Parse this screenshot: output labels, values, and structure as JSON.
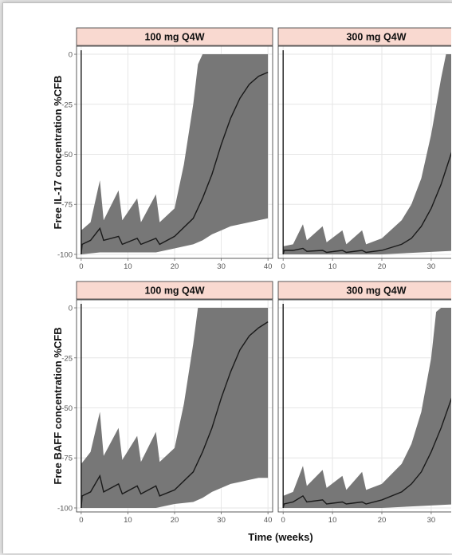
{
  "chart_data": {
    "type": "area",
    "xlabel": "Time (weeks)",
    "x_ticks": [
      0,
      10,
      20,
      30,
      40
    ],
    "y_ticks": [
      0,
      -25,
      -50,
      -75,
      -100
    ],
    "xlim": [
      -1,
      41
    ],
    "ylim": [
      -102,
      4
    ],
    "grid": true,
    "colors": {
      "band": "#777777",
      "line": "#1a1a1a",
      "strip": "#f9d9d0",
      "grid": "#e6e6e6"
    },
    "rows": [
      {
        "ylabel": "Free IL-17 concentration %CFB"
      },
      {
        "ylabel": "Free BAFF concentration %CFB"
      }
    ],
    "panels": [
      {
        "title": "100 mg Q4W",
        "row": 0,
        "col": 0,
        "median": [
          [
            0,
            -100
          ],
          [
            0.2,
            -95
          ],
          [
            2,
            -93
          ],
          [
            4,
            -87
          ],
          [
            4.8,
            -93
          ],
          [
            8,
            -91
          ],
          [
            8.8,
            -95
          ],
          [
            12,
            -92
          ],
          [
            12.8,
            -95
          ],
          [
            16,
            -92
          ],
          [
            16.8,
            -95
          ],
          [
            20,
            -91
          ],
          [
            24,
            -82
          ],
          [
            26,
            -72
          ],
          [
            28,
            -60
          ],
          [
            30,
            -45
          ],
          [
            32,
            -32
          ],
          [
            34,
            -22
          ],
          [
            36,
            -15
          ],
          [
            38,
            -11
          ],
          [
            40,
            -9
          ]
        ],
        "upper": [
          [
            0,
            -88
          ],
          [
            2,
            -84
          ],
          [
            4,
            -63
          ],
          [
            4.8,
            -83
          ],
          [
            8,
            -68
          ],
          [
            8.8,
            -83
          ],
          [
            12,
            -72
          ],
          [
            12.8,
            -84
          ],
          [
            16,
            -70
          ],
          [
            16.8,
            -84
          ],
          [
            20,
            -77
          ],
          [
            22,
            -55
          ],
          [
            24,
            -25
          ],
          [
            25,
            -5
          ],
          [
            26,
            0
          ],
          [
            28,
            0
          ],
          [
            40,
            0
          ]
        ],
        "lower": [
          [
            0,
            -100
          ],
          [
            4,
            -99
          ],
          [
            8,
            -99
          ],
          [
            12,
            -99
          ],
          [
            16,
            -99
          ],
          [
            18,
            -98
          ],
          [
            20,
            -97
          ],
          [
            24,
            -95
          ],
          [
            26,
            -93
          ],
          [
            28,
            -90
          ],
          [
            30,
            -88
          ],
          [
            32,
            -86
          ],
          [
            34,
            -85
          ],
          [
            36,
            -84
          ],
          [
            38,
            -83
          ],
          [
            40,
            -82
          ]
        ]
      },
      {
        "title": "300 mg Q4W",
        "row": 0,
        "col": 1,
        "median": [
          [
            0,
            -100
          ],
          [
            0.2,
            -98
          ],
          [
            2,
            -98
          ],
          [
            4,
            -97
          ],
          [
            4.8,
            -98.5
          ],
          [
            8,
            -98
          ],
          [
            8.8,
            -99
          ],
          [
            12,
            -98
          ],
          [
            12.8,
            -99
          ],
          [
            16,
            -98
          ],
          [
            16.8,
            -99
          ],
          [
            20,
            -98
          ],
          [
            24,
            -95
          ],
          [
            26,
            -92
          ],
          [
            28,
            -86
          ],
          [
            30,
            -77
          ],
          [
            32,
            -65
          ],
          [
            34,
            -50
          ],
          [
            36,
            -35
          ],
          [
            38,
            -22
          ],
          [
            40,
            -12
          ]
        ],
        "upper": [
          [
            0,
            -96
          ],
          [
            2,
            -95
          ],
          [
            4,
            -85
          ],
          [
            4.8,
            -93
          ],
          [
            8,
            -86
          ],
          [
            8.8,
            -94
          ],
          [
            12,
            -88
          ],
          [
            12.8,
            -95
          ],
          [
            16,
            -88
          ],
          [
            16.8,
            -95
          ],
          [
            20,
            -92
          ],
          [
            24,
            -83
          ],
          [
            26,
            -75
          ],
          [
            28,
            -62
          ],
          [
            30,
            -40
          ],
          [
            32,
            -12
          ],
          [
            33,
            0
          ],
          [
            40,
            0
          ]
        ],
        "lower": [
          [
            0,
            -100
          ],
          [
            10,
            -100
          ],
          [
            16,
            -100
          ],
          [
            20,
            -100
          ],
          [
            24,
            -99.5
          ],
          [
            28,
            -99
          ],
          [
            32,
            -98.5
          ],
          [
            36,
            -98
          ],
          [
            40,
            -97
          ]
        ]
      },
      {
        "title": "100 mg Q4W",
        "row": 1,
        "col": 0,
        "median": [
          [
            0,
            -100
          ],
          [
            0.2,
            -94
          ],
          [
            2,
            -92
          ],
          [
            4,
            -84
          ],
          [
            4.8,
            -92
          ],
          [
            8,
            -88
          ],
          [
            8.8,
            -93
          ],
          [
            12,
            -89
          ],
          [
            12.8,
            -93
          ],
          [
            16,
            -89
          ],
          [
            16.8,
            -94
          ],
          [
            20,
            -91
          ],
          [
            24,
            -82
          ],
          [
            26,
            -72
          ],
          [
            28,
            -60
          ],
          [
            30,
            -45
          ],
          [
            32,
            -32
          ],
          [
            34,
            -21
          ],
          [
            36,
            -14
          ],
          [
            38,
            -10
          ],
          [
            40,
            -7
          ]
        ],
        "upper": [
          [
            0,
            -78
          ],
          [
            2,
            -72
          ],
          [
            4,
            -52
          ],
          [
            4.8,
            -74
          ],
          [
            8,
            -60
          ],
          [
            8.8,
            -76
          ],
          [
            12,
            -64
          ],
          [
            12.8,
            -77
          ],
          [
            16,
            -62
          ],
          [
            16.8,
            -77
          ],
          [
            20,
            -70
          ],
          [
            22,
            -48
          ],
          [
            24,
            -18
          ],
          [
            25,
            0
          ],
          [
            40,
            0
          ]
        ],
        "lower": [
          [
            0,
            -100
          ],
          [
            4,
            -100
          ],
          [
            8,
            -100
          ],
          [
            12,
            -100
          ],
          [
            16,
            -100
          ],
          [
            18,
            -99
          ],
          [
            20,
            -98
          ],
          [
            24,
            -97
          ],
          [
            26,
            -95
          ],
          [
            28,
            -92
          ],
          [
            30,
            -90
          ],
          [
            32,
            -88
          ],
          [
            34,
            -87
          ],
          [
            36,
            -86
          ],
          [
            38,
            -85
          ],
          [
            40,
            -85
          ]
        ]
      },
      {
        "title": "300 mg Q4W",
        "row": 1,
        "col": 1,
        "median": [
          [
            0,
            -100
          ],
          [
            0.2,
            -98
          ],
          [
            2,
            -97
          ],
          [
            4,
            -94
          ],
          [
            4.8,
            -97
          ],
          [
            8,
            -96
          ],
          [
            8.8,
            -98
          ],
          [
            12,
            -97
          ],
          [
            12.8,
            -98
          ],
          [
            16,
            -97
          ],
          [
            16.8,
            -98
          ],
          [
            20,
            -96
          ],
          [
            24,
            -92
          ],
          [
            26,
            -88
          ],
          [
            28,
            -82
          ],
          [
            30,
            -72
          ],
          [
            32,
            -60
          ],
          [
            34,
            -46
          ],
          [
            36,
            -32
          ],
          [
            38,
            -20
          ],
          [
            40,
            -10
          ]
        ],
        "upper": [
          [
            0,
            -94
          ],
          [
            2,
            -92
          ],
          [
            4,
            -79
          ],
          [
            4.8,
            -89
          ],
          [
            8,
            -81
          ],
          [
            8.8,
            -90
          ],
          [
            12,
            -84
          ],
          [
            12.8,
            -91
          ],
          [
            16,
            -82
          ],
          [
            16.8,
            -91
          ],
          [
            20,
            -88
          ],
          [
            24,
            -78
          ],
          [
            26,
            -68
          ],
          [
            28,
            -52
          ],
          [
            30,
            -25
          ],
          [
            31,
            -2
          ],
          [
            32,
            0
          ],
          [
            40,
            0
          ]
        ],
        "lower": [
          [
            0,
            -100
          ],
          [
            10,
            -100
          ],
          [
            16,
            -100
          ],
          [
            20,
            -100
          ],
          [
            24,
            -99.5
          ],
          [
            28,
            -99
          ],
          [
            32,
            -98.5
          ],
          [
            36,
            -98
          ],
          [
            40,
            -97.5
          ]
        ]
      }
    ]
  }
}
